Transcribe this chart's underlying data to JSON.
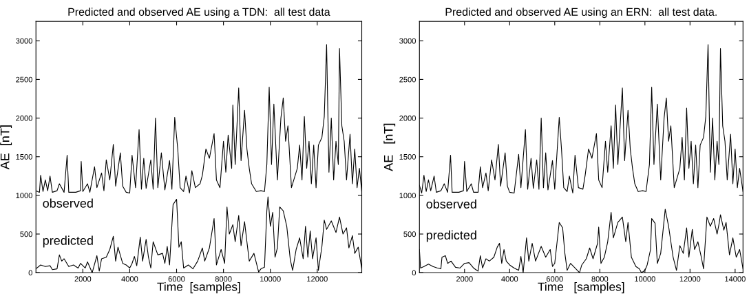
{
  "chart_data": [
    {
      "type": "line",
      "title": "Predicted and observed AE using a TDN:  all test data",
      "xlabel": "Time  [samples]",
      "ylabel": "AE  [nT]",
      "xlim": [
        0,
        13900
      ],
      "xticks": [
        2000,
        4000,
        6000,
        8000,
        10000,
        12000
      ],
      "ylim": [
        0,
        3250
      ],
      "yticks": [
        0,
        500,
        1000,
        1500,
        2000,
        2500,
        3000
      ],
      "grid": false,
      "legend": false,
      "series": [
        {
          "name": "observed",
          "color": "#000000",
          "x": [
            0,
            150,
            200,
            300,
            400,
            500,
            600,
            700,
            900,
            1000,
            1200,
            1330,
            1400,
            1700,
            1900,
            1930,
            2000,
            2200,
            2300,
            2500,
            2600,
            2800,
            2900,
            3000,
            3150,
            3300,
            3400,
            3600,
            3700,
            3850,
            4000,
            4100,
            4250,
            4400,
            4500,
            4600,
            4700,
            4900,
            5000,
            5100,
            5200,
            5350,
            5500,
            5700,
            5800,
            5920,
            6050,
            6150,
            6300,
            6400,
            6550,
            6650,
            6800,
            7000,
            7100,
            7250,
            7400,
            7600,
            7700,
            7850,
            8000,
            8100,
            8200,
            8350,
            8400,
            8500,
            8650,
            8750,
            8900,
            9000,
            9100,
            9200,
            9400,
            9600,
            9750,
            9850,
            9950,
            10050,
            10150,
            10300,
            10450,
            10550,
            10650,
            10750,
            10900,
            11050,
            11150,
            11250,
            11350,
            11450,
            11550,
            11650,
            11750,
            11850,
            11950,
            12050,
            12200,
            12300,
            12400,
            12500,
            12600,
            12700,
            12800,
            12900,
            12950,
            13050,
            13150,
            13250,
            13400,
            13500,
            13600,
            13700,
            13800,
            13900
          ],
          "values": [
            1060,
            1040,
            1260,
            1050,
            1200,
            1060,
            1250,
            1040,
            1060,
            1150,
            1040,
            1520,
            1040,
            1040,
            1060,
            1440,
            1050,
            1150,
            1040,
            1370,
            1100,
            1290,
            1060,
            1460,
            1200,
            1660,
            1120,
            1550,
            1120,
            1040,
            1030,
            1520,
            1100,
            1850,
            1080,
            1480,
            1090,
            1460,
            1080,
            2000,
            1100,
            1550,
            1070,
            1450,
            1080,
            2010,
            1600,
            1100,
            1050,
            1250,
            1030,
            1320,
            1100,
            1150,
            1260,
            1600,
            1480,
            1800,
            1200,
            1100,
            1700,
            1300,
            1780,
            1350,
            2170,
            1400,
            2390,
            1450,
            2100,
            1600,
            1350,
            1150,
            1050,
            1060,
            1050,
            1400,
            2400,
            1400,
            2180,
            1200,
            2000,
            2260,
            1700,
            1900,
            1100,
            1250,
            1350,
            1650,
            1200,
            2020,
            1350,
            1700,
            1150,
            1650,
            1100,
            1650,
            1750,
            2020,
            2950,
            1300,
            2000,
            1200,
            1700,
            1400,
            2900,
            1900,
            1700,
            1200,
            1790,
            1150,
            1600,
            1100,
            1350,
            1050
          ]
        },
        {
          "name": "predicted",
          "color": "#000000",
          "x": [
            0,
            200,
            400,
            600,
            700,
            900,
            1000,
            1100,
            1200,
            1400,
            1600,
            1800,
            1900,
            2100,
            2200,
            2400,
            2600,
            2700,
            2800,
            3000,
            3150,
            3300,
            3400,
            3500,
            3700,
            3850,
            4000,
            4100,
            4200,
            4300,
            4450,
            4550,
            4700,
            4800,
            4900,
            5000,
            5200,
            5400,
            5500,
            5600,
            5700,
            5850,
            6000,
            6100,
            6200,
            6300,
            6500,
            6700,
            6900,
            7100,
            7200,
            7400,
            7600,
            7700,
            7900,
            8050,
            8150,
            8250,
            8400,
            8500,
            8650,
            8750,
            8900,
            9000,
            9100,
            9300,
            9500,
            9600,
            9750,
            9850,
            9900,
            10000,
            10100,
            10200,
            10300,
            10400,
            10550,
            10700,
            10850,
            10950,
            11100,
            11250,
            11400,
            11500,
            11600,
            11700,
            11800,
            11950,
            12050,
            12200,
            12300,
            12400,
            12600,
            12800,
            12950,
            13100,
            13250,
            13350,
            13500,
            13600,
            13750,
            13900
          ],
          "values": [
            50,
            100,
            80,
            90,
            40,
            50,
            230,
            150,
            180,
            80,
            100,
            60,
            120,
            60,
            140,
            0,
            220,
            20,
            180,
            200,
            300,
            470,
            150,
            330,
            120,
            100,
            60,
            120,
            210,
            90,
            460,
            150,
            430,
            200,
            60,
            400,
            230,
            250,
            120,
            340,
            100,
            880,
            950,
            330,
            400,
            60,
            100,
            50,
            150,
            320,
            150,
            320,
            700,
            100,
            300,
            120,
            850,
            500,
            620,
            400,
            740,
            350,
            660,
            400,
            150,
            250,
            10,
            50,
            70,
            800,
            980,
            600,
            780,
            200,
            320,
            850,
            800,
            600,
            170,
            30,
            300,
            450,
            180,
            600,
            200,
            540,
            180,
            450,
            30,
            340,
            680,
            560,
            670,
            520,
            720,
            500,
            580,
            320,
            480,
            250,
            330,
            50
          ]
        }
      ]
    },
    {
      "type": "line",
      "title": "Predicted and observed AE using an ERN:  all test data.",
      "xlabel": "Time   [samples]",
      "ylabel": "AE   [nT]",
      "xlim": [
        0,
        14350
      ],
      "xticks": [
        2000,
        4000,
        6000,
        8000,
        10000,
        12000,
        14000
      ],
      "ylim": [
        0,
        3250
      ],
      "yticks": [
        0,
        500,
        1000,
        1500,
        2000,
        2500,
        3000
      ],
      "grid": false,
      "legend": false,
      "series": [
        {
          "name": "observed",
          "color": "#000000",
          "x": [
            0,
            100,
            200,
            300,
            400,
            500,
            650,
            750,
            950,
            1100,
            1250,
            1380,
            1450,
            1750,
            1950,
            2000,
            2100,
            2300,
            2400,
            2600,
            2700,
            2800,
            2950,
            3050,
            3200,
            3350,
            3500,
            3600,
            3800,
            3900,
            4000,
            4200,
            4400,
            4500,
            4700,
            4800,
            4950,
            5050,
            5200,
            5300,
            5400,
            5500,
            5600,
            5700,
            5900,
            6000,
            6200,
            6300,
            6400,
            6550,
            6650,
            6800,
            6900,
            7050,
            7250,
            7350,
            7500,
            7650,
            7850,
            7950,
            8100,
            8250,
            8350,
            8500,
            8600,
            8700,
            8800,
            9000,
            9100,
            9250,
            9350,
            9450,
            9550,
            9700,
            9900,
            10050,
            10200,
            10300,
            10400,
            10550,
            10700,
            10850,
            10950,
            11050,
            11150,
            11300,
            11450,
            11550,
            11650,
            11750,
            11850,
            11950,
            12050,
            12150,
            12250,
            12350,
            12450,
            12600,
            12700,
            12800,
            12900,
            13000,
            13100,
            13200,
            13280,
            13350,
            13450,
            13550,
            13650,
            13800,
            13900,
            14000,
            14100,
            14200,
            14350
          ],
          "values": [
            1130,
            1030,
            1260,
            1050,
            1200,
            1060,
            1250,
            1040,
            1060,
            1150,
            1040,
            1520,
            1040,
            1040,
            1060,
            1440,
            1050,
            1150,
            1040,
            1040,
            1370,
            1100,
            1290,
            1060,
            1460,
            1200,
            1660,
            1120,
            1550,
            1120,
            1040,
            1030,
            1530,
            1100,
            1850,
            1080,
            1480,
            1090,
            1460,
            1080,
            2000,
            1100,
            1550,
            1070,
            1450,
            1080,
            2010,
            1600,
            1100,
            1050,
            1250,
            1030,
            1520,
            1100,
            1080,
            1260,
            1600,
            1480,
            1800,
            1200,
            1100,
            1700,
            1300,
            1900,
            1350,
            2170,
            1400,
            2390,
            1450,
            2100,
            1600,
            1350,
            1150,
            1050,
            1060,
            1050,
            1400,
            2400,
            1400,
            2180,
            1200,
            2000,
            2260,
            1700,
            1900,
            1100,
            1250,
            1350,
            1750,
            1200,
            2130,
            1350,
            1700,
            1150,
            1650,
            1100,
            1650,
            1750,
            2020,
            2950,
            1300,
            2000,
            1200,
            1700,
            1400,
            2900,
            1900,
            1700,
            1200,
            1790,
            1150,
            1600,
            1100,
            1350,
            1050
          ]
        },
        {
          "name": "predicted",
          "color": "#000000",
          "x": [
            0,
            50,
            200,
            400,
            600,
            800,
            950,
            1000,
            1150,
            1250,
            1400,
            1600,
            1800,
            2000,
            2200,
            2400,
            2600,
            2700,
            2800,
            2950,
            3100,
            3300,
            3450,
            3550,
            3650,
            3750,
            3850,
            4000,
            4200,
            4400,
            4500,
            4600,
            4750,
            4850,
            5000,
            5150,
            5400,
            5600,
            5800,
            5900,
            6000,
            6200,
            6350,
            6450,
            6550,
            6700,
            6900,
            7100,
            7200,
            7400,
            7550,
            7700,
            7900,
            7950,
            8050,
            8200,
            8350,
            8500,
            8600,
            8800,
            9000,
            9150,
            9250,
            9400,
            9600,
            9750,
            9850,
            10000,
            10100,
            10250,
            10300,
            10450,
            10550,
            10700,
            10900,
            11050,
            11150,
            11250,
            11400,
            11550,
            11700,
            11850,
            11950,
            12100,
            12200,
            12350,
            12500,
            12600,
            12750,
            12900,
            13050,
            13200,
            13300,
            13350,
            13500,
            13600,
            13750,
            13900,
            14050,
            14200,
            14350
          ],
          "values": [
            300,
            60,
            80,
            110,
            80,
            60,
            50,
            200,
            220,
            120,
            150,
            70,
            60,
            120,
            130,
            60,
            20,
            220,
            60,
            180,
            150,
            200,
            330,
            380,
            120,
            300,
            150,
            100,
            60,
            30,
            210,
            0,
            450,
            150,
            380,
            150,
            340,
            200,
            300,
            80,
            120,
            650,
            580,
            250,
            30,
            120,
            60,
            0,
            100,
            180,
            320,
            180,
            380,
            590,
            120,
            200,
            400,
            780,
            450,
            650,
            720,
            400,
            650,
            200,
            80,
            50,
            0,
            30,
            100,
            300,
            700,
            640,
            120,
            250,
            820,
            600,
            400,
            200,
            30,
            350,
            250,
            580,
            200,
            560,
            300,
            400,
            200,
            50,
            720,
            600,
            700,
            500,
            650,
            750,
            550,
            650,
            230,
            450,
            200,
            300,
            50
          ]
        }
      ]
    }
  ]
}
